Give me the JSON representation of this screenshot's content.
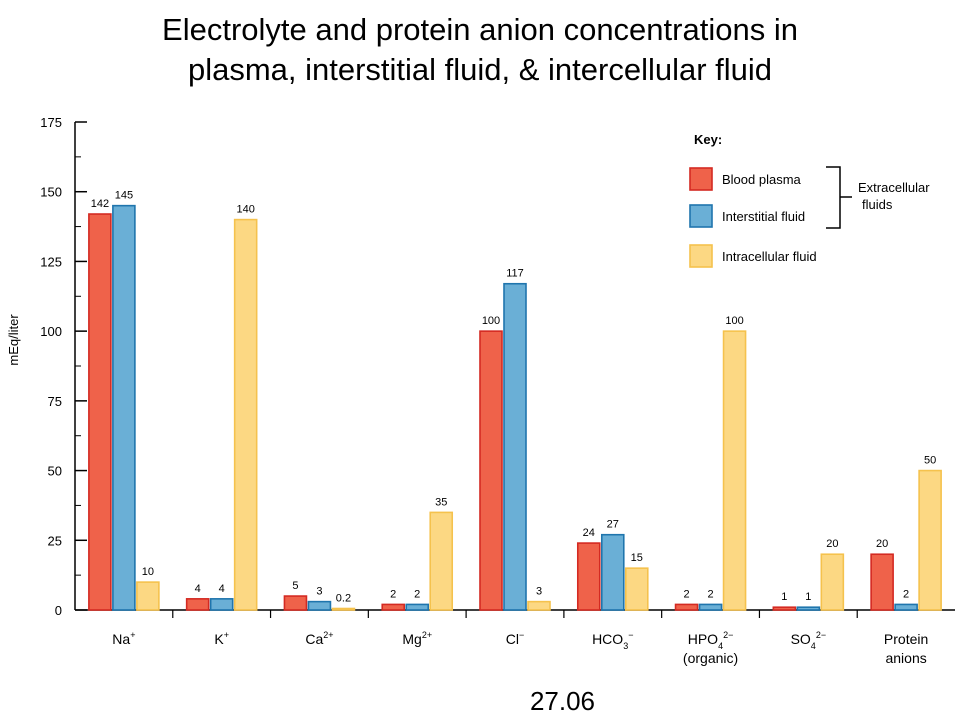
{
  "title_lines": [
    "Electrolyte and protein anion concentrations in",
    "plasma, interstitial fluid, & intercellular fluid"
  ],
  "figure_number": "27.06",
  "colors": {
    "blood_plasma_fill": "#ef624a",
    "blood_plasma_stroke": "#d42a22",
    "interstitial_fill": "#6aafd6",
    "interstitial_stroke": "#1f75ad",
    "intracellular_fill": "#fcd883",
    "intracellular_stroke": "#f5c24d"
  },
  "chart_data": {
    "type": "bar",
    "ylabel": "mEq/liter",
    "ylim": [
      0,
      175
    ],
    "yticks": [
      0,
      25,
      50,
      75,
      100,
      125,
      150,
      175
    ],
    "grid": false,
    "legend_placement": "top-right",
    "categories": [
      {
        "base": "Na",
        "sub": "",
        "sup": "+"
      },
      {
        "base": "K",
        "sub": "",
        "sup": "+"
      },
      {
        "base": "Ca",
        "sub": "",
        "sup": "2+"
      },
      {
        "base": "Mg",
        "sub": "",
        "sup": "2+"
      },
      {
        "base": "Cl",
        "sub": "",
        "sup": "−"
      },
      {
        "base": "HCO",
        "sub": "3",
        "sup": "−"
      },
      {
        "base": "HPO",
        "sub": "4",
        "sup": "2−",
        "line2": "(organic)"
      },
      {
        "base": "SO",
        "sub": "4",
        "sup": "2−"
      },
      {
        "base": "Protein",
        "sub": "",
        "sup": "",
        "line2": "anions"
      }
    ],
    "series": [
      {
        "name": "Blood plasma",
        "values": [
          142,
          4,
          5,
          2,
          100,
          24,
          2,
          1,
          20
        ],
        "labels": [
          "142",
          "4",
          "5",
          "2",
          "100",
          "24",
          "2",
          "1",
          "20"
        ]
      },
      {
        "name": "Interstitial fluid",
        "values": [
          145,
          4,
          3,
          2,
          117,
          27,
          2,
          1,
          2
        ],
        "labels": [
          "145",
          "4",
          "3",
          "2",
          "117",
          "27",
          "2",
          "1",
          "2"
        ]
      },
      {
        "name": "Intracellular fluid",
        "values": [
          10,
          140,
          0.2,
          35,
          3,
          15,
          100,
          20,
          50
        ],
        "labels": [
          "10",
          "140",
          "0.2",
          "35",
          "3",
          "15",
          "100",
          "20",
          "50"
        ]
      }
    ],
    "legend": {
      "heading": "Key:",
      "group_label_lines": [
        "Extracellular",
        "fluids"
      ]
    }
  }
}
